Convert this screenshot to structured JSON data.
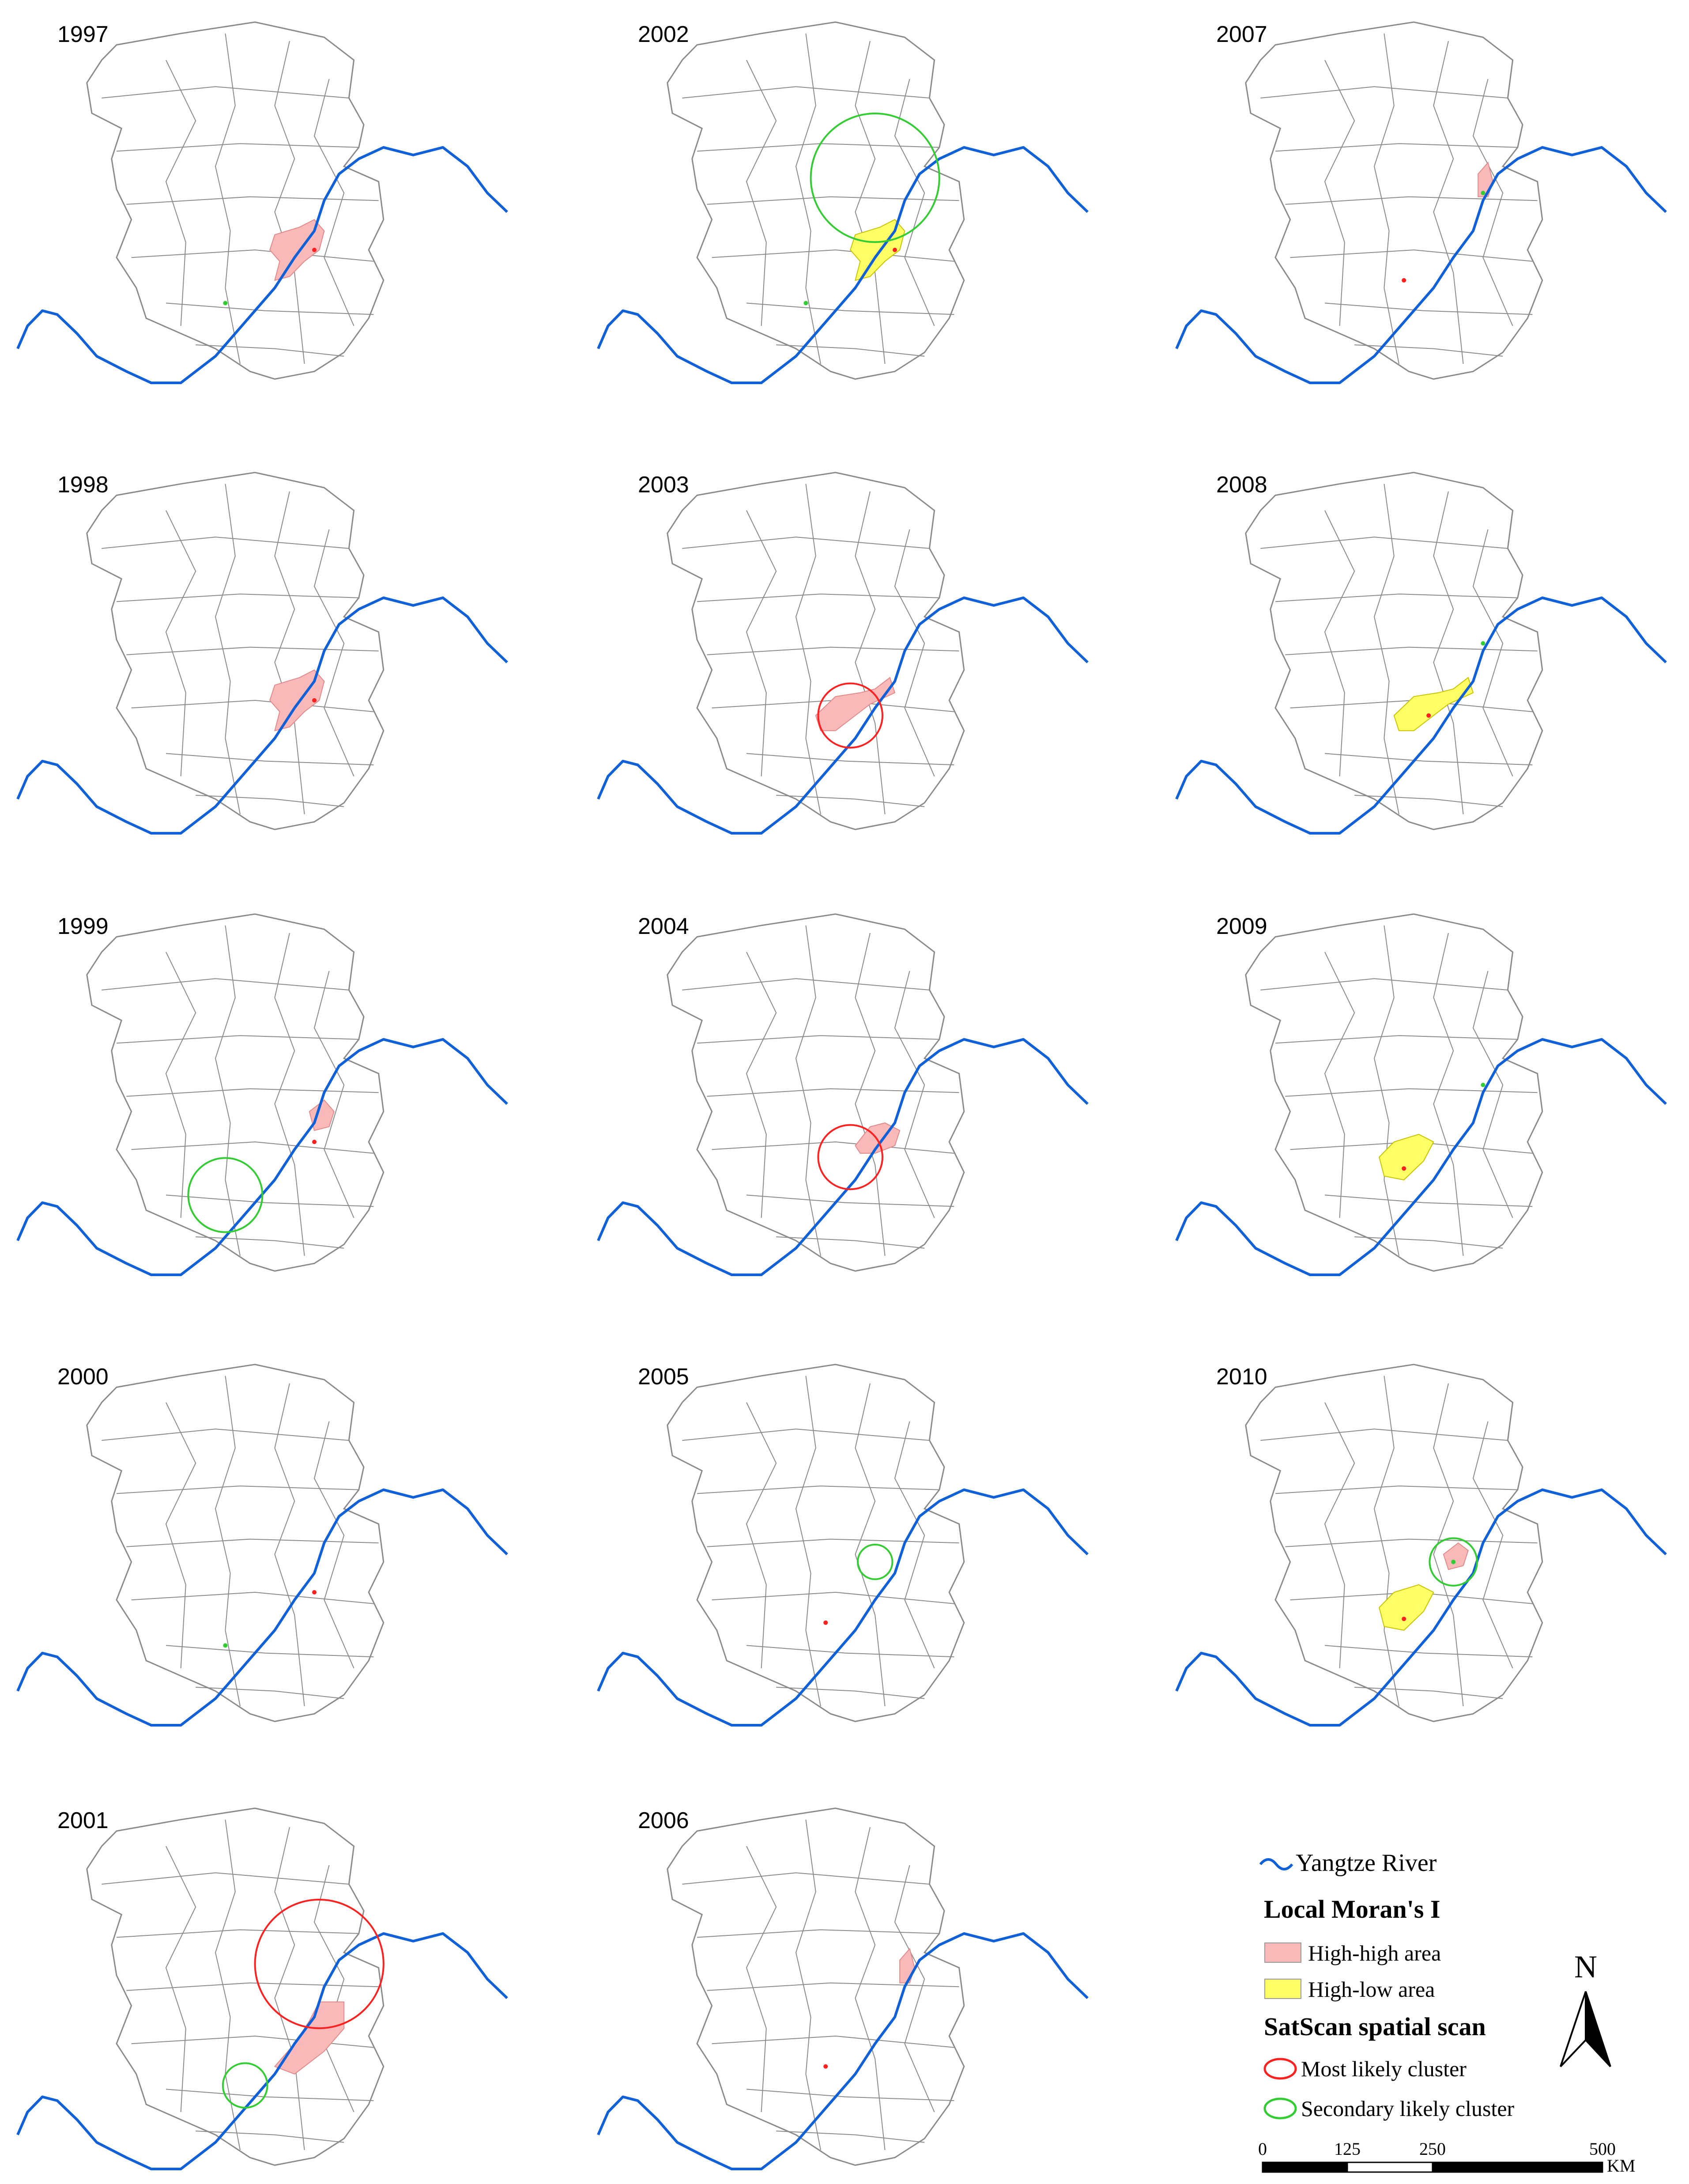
{
  "panels": [
    {
      "year": "1997",
      "hh": [
        "A"
      ],
      "hl": [],
      "clusters": [],
      "dots": [
        {
          "pt": "c",
          "color": "red"
        },
        {
          "pt": "w",
          "color": "green"
        }
      ]
    },
    {
      "year": "2002",
      "hh": [],
      "hl": [
        "A"
      ],
      "clusters": [
        {
          "pt": "n",
          "r": 0.13,
          "kind": "secondary"
        }
      ],
      "dots": [
        {
          "pt": "c",
          "color": "red"
        },
        {
          "pt": "w",
          "color": "green"
        }
      ]
    },
    {
      "year": "2007",
      "hh": [
        "E"
      ],
      "hl": [],
      "clusters": [],
      "dots": [
        {
          "pt": "e",
          "color": "green"
        },
        {
          "pt": "s",
          "color": "red"
        }
      ]
    },
    {
      "year": "1998",
      "hh": [
        "A"
      ],
      "hl": [],
      "clusters": [],
      "dots": [
        {
          "pt": "c",
          "color": "red"
        }
      ]
    },
    {
      "year": "2003",
      "hh": [
        "B"
      ],
      "hl": [],
      "clusters": [
        {
          "pt": "b",
          "r": 0.065,
          "kind": "most"
        }
      ],
      "dots": []
    },
    {
      "year": "2008",
      "hh": [],
      "hl": [
        "B"
      ],
      "clusters": [],
      "dots": [
        {
          "pt": "b",
          "color": "red"
        },
        {
          "pt": "e",
          "color": "green"
        }
      ]
    },
    {
      "year": "1999",
      "hh": [
        "D"
      ],
      "hl": [],
      "clusters": [
        {
          "pt": "w",
          "r": 0.075,
          "kind": "secondary"
        }
      ],
      "dots": [
        {
          "pt": "c",
          "color": "red"
        }
      ]
    },
    {
      "year": "2004",
      "hh": [
        "C"
      ],
      "hl": [],
      "clusters": [
        {
          "pt": "b",
          "r": 0.065,
          "kind": "most"
        }
      ],
      "dots": []
    },
    {
      "year": "2009",
      "hh": [],
      "hl": [
        "F"
      ],
      "clusters": [],
      "dots": [
        {
          "pt": "f",
          "color": "red"
        },
        {
          "pt": "e",
          "color": "green"
        }
      ]
    },
    {
      "year": "2000",
      "hh": [],
      "hl": [],
      "clusters": [],
      "dots": [
        {
          "pt": "c",
          "color": "red"
        },
        {
          "pt": "w",
          "color": "green"
        }
      ]
    },
    {
      "year": "2005",
      "hh": [],
      "hl": [],
      "clusters": [
        {
          "pt": "g",
          "r": 0.035,
          "kind": "secondary"
        }
      ],
      "dots": [
        {
          "pt": "s",
          "color": "red"
        }
      ]
    },
    {
      "year": "2010",
      "hh": [
        "G"
      ],
      "hl": [
        "F"
      ],
      "clusters": [
        {
          "pt": "g",
          "r": 0.048,
          "kind": "secondary"
        }
      ],
      "dots": [
        {
          "pt": "f",
          "color": "red"
        },
        {
          "pt": "g",
          "color": "green"
        }
      ]
    },
    {
      "year": "2001",
      "hh": [
        "H"
      ],
      "hl": [],
      "clusters": [
        {
          "pt": "h",
          "r": 0.13,
          "kind": "most"
        },
        {
          "pt": "w2",
          "r": 0.045,
          "kind": "secondary"
        }
      ],
      "dots": []
    },
    {
      "year": "2006",
      "hh": [
        "E"
      ],
      "hl": [],
      "clusters": [],
      "dots": [
        {
          "pt": "s",
          "color": "red"
        }
      ]
    }
  ],
  "legend": {
    "river_label": "Yangtze River",
    "moran_title": "Local Moran's I",
    "high_high": "High-high area",
    "high_low": "High-low area",
    "satscan_title": "SatScan spatial scan",
    "most_likely": "Most likely cluster",
    "secondary_likely": "Secondary likely cluster"
  },
  "north_label": "N",
  "scale": {
    "ticks": [
      "0",
      "125",
      "250",
      "500"
    ],
    "unit": "KM"
  },
  "colors": {
    "high_high": "#f9b9b9",
    "high_low": "#ffff66",
    "river": "#1060d8",
    "most": "#ff2020",
    "secondary": "#33cc33",
    "border": "#8a8a8a"
  }
}
